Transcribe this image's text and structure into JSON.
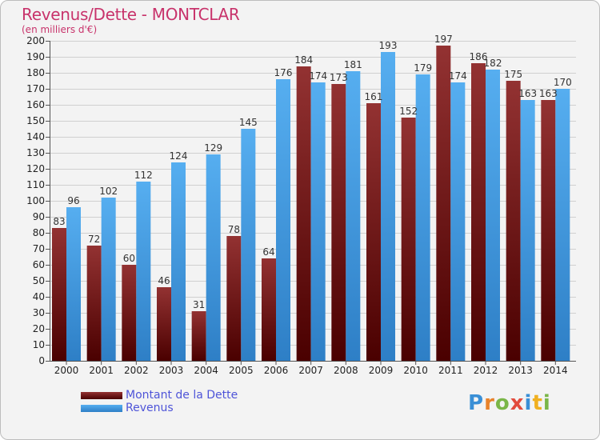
{
  "title": "Revenus/Dette - MONTCLAR",
  "subtitle": "(en milliers d'€)",
  "logo_text": "Proxiti",
  "colors": {
    "dette": "#7a1a1a",
    "revenus": "#4aa3e6",
    "title": "#c8336b",
    "legend_text": "#4e54d8"
  },
  "legend": [
    {
      "label": "Montant de la Dette",
      "color": "#7a1a1a"
    },
    {
      "label": "Revenus",
      "color": "#4aa3e6"
    }
  ],
  "chart_data": {
    "type": "bar",
    "title": "Revenus/Dette - MONTCLAR",
    "ylabel": "(en milliers d'€)",
    "xlabel": "",
    "ylim": [
      0,
      200
    ],
    "ytick_step": 10,
    "grid": true,
    "legend_position": "bottom-left",
    "categories": [
      "2000",
      "2001",
      "2002",
      "2003",
      "2004",
      "2005",
      "2006",
      "2007",
      "2008",
      "2009",
      "2010",
      "2011",
      "2012",
      "2013",
      "2014"
    ],
    "series": [
      {
        "name": "Montant de la Dette",
        "values": [
          83,
          72,
          60,
          46,
          31,
          78,
          64,
          184,
          173,
          161,
          152,
          197,
          186,
          175,
          163
        ]
      },
      {
        "name": "Revenus",
        "values": [
          96,
          102,
          112,
          124,
          129,
          145,
          176,
          174,
          181,
          193,
          179,
          174,
          182,
          163,
          170
        ]
      }
    ]
  }
}
